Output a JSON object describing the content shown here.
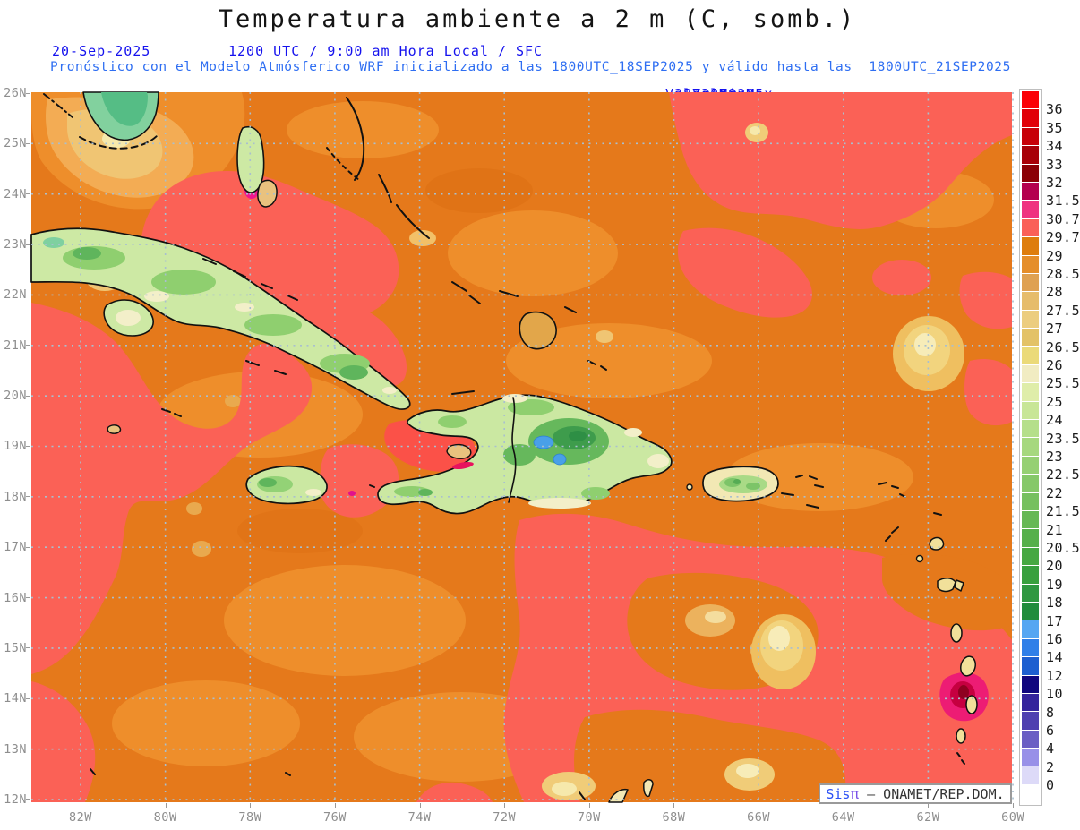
{
  "title": "Temperatura ambiente a 2 m (C, somb.)",
  "subtitle": {
    "date": "20-Sep-2025",
    "valid_time": "1200 UTC / 9:00 am Hora Local / SFC",
    "valor_min_label": "Valor Min. =",
    "valor_min_value": "287.479",
    "valor_max_label": "Valor Max. =",
    "valor_max_value": "305.295",
    "model_line": "Pronóstico con el Modelo Atmósferico WRF inicializado a las 1800UTC_18SEP2025 y válido hasta las  1800UTC_21SEP2025"
  },
  "map": {
    "lat_labels": [
      "26N",
      "25N",
      "24N",
      "23N",
      "22N",
      "21N",
      "20N",
      "19N",
      "18N",
      "17N",
      "16N",
      "15N",
      "14N",
      "13N",
      "12N"
    ],
    "lon_labels": [
      "82W",
      "80W",
      "78W",
      "76W",
      "74W",
      "72W",
      "70W",
      "68W",
      "66W",
      "64W",
      "62W",
      "60W"
    ],
    "grid_color": "#A9BFCF",
    "ocean_base_color": "#E5791B",
    "ocean_light_color": "#EE8E2B",
    "warm_patch_color": "#FB6156",
    "hot_spot_color": "#F0168E",
    "land_color": "#CBE8A2",
    "mountain_color": "#3E9C4C",
    "lake_color": "#49A0E8",
    "coast_color": "#111111"
  },
  "colorbar": {
    "labels": [
      "36",
      "35",
      "34",
      "33",
      "32",
      "31.5",
      "30.7",
      "29.7",
      "29",
      "28.5",
      "28",
      "27.5",
      "27",
      "26.5",
      "26",
      "25.5",
      "25",
      "24",
      "23.5",
      "23",
      "22.5",
      "22",
      "21.5",
      "21",
      "20.5",
      "20",
      "19",
      "18",
      "17",
      "16",
      "14",
      "12",
      "10",
      "8",
      "6",
      "4",
      "2",
      "0"
    ],
    "colors": [
      "#FB0007",
      "#E10008",
      "#C70008",
      "#A80008",
      "#8B0006",
      "#B4004E",
      "#EF3380",
      "#FA6058",
      "#DE7D0D",
      "#E58E2A",
      "#DFA152",
      "#E6BC6B",
      "#ECCD7F",
      "#E3C267",
      "#EBDA79",
      "#F1ECC2",
      "#DFEDA9",
      "#C8E697",
      "#B5DF8A",
      "#A6D87E",
      "#96D073",
      "#86C869",
      "#76C05F",
      "#66B855",
      "#56B04B",
      "#46A842",
      "#38A03E",
      "#2F9841",
      "#218C3C",
      "#55A6F2",
      "#2F7FE8",
      "#1D5FD0",
      "#10077E",
      "#34249C",
      "#4E40B0",
      "#6A5EC4",
      "#9890E8",
      "#DDDAF8",
      "#FFFFFF"
    ]
  },
  "watermark": {
    "prefix": "Sis",
    "pi": "π",
    "separator": " – ",
    "credit": "ONAMET/REP.DOM."
  }
}
